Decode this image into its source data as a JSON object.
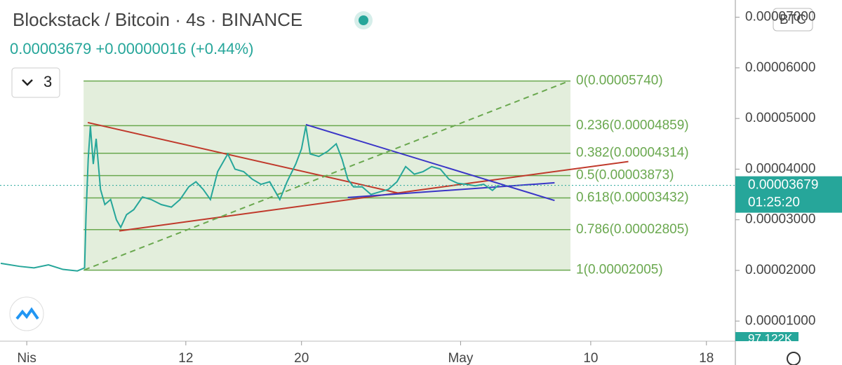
{
  "chart_data": {
    "type": "line",
    "title": "Blockstack / Bitcoin · 4s · BINANCE",
    "subtitle": "0.00003679 +0.00000016 (+0.44%)",
    "indicator_count": "3",
    "currency": "BTC",
    "last_price": {
      "value": 3.679e-05,
      "label": "0.00003679"
    },
    "countdown": "01:25:20",
    "volume_label": "97.122K",
    "xlim": [
      -0.85,
      50
    ],
    "ylim": [
      6.3e-06,
      7.34e-05
    ],
    "xticks": [
      {
        "value": 1,
        "label": "Nis"
      },
      12,
      20,
      {
        "value": 31,
        "label": "May"
      },
      {
        "value": 40,
        "label": "10"
      },
      {
        "value": 48,
        "label": "18"
      }
    ],
    "yticks": [
      {
        "value": 1e-05,
        "label": "0.00001000"
      },
      {
        "value": 2e-05,
        "label": "0.00002000"
      },
      {
        "value": 3e-05,
        "label": "0.00003000"
      },
      {
        "value": 4e-05,
        "label": "0.00004000"
      },
      {
        "value": 5e-05,
        "label": "0.00005000"
      },
      {
        "value": 6e-05,
        "label": "0.00006000"
      },
      {
        "value": 7e-05,
        "label": "0.00007000"
      }
    ],
    "series": [
      {
        "name": "Blockstack / Bitcoin",
        "color": "#26a69a",
        "x": [
          -0.8,
          0.5,
          1.5,
          2.5,
          3.5,
          4.5,
          5.0,
          5.1,
          5.25,
          5.4,
          5.6,
          5.8,
          6.1,
          6.4,
          6.8,
          7.2,
          7.5,
          7.9,
          8.4,
          9.0,
          9.6,
          10.3,
          11,
          11.6,
          12.2,
          12.7,
          13.2,
          13.7,
          14.2,
          14.9,
          15.4,
          16,
          16.6,
          17.2,
          17.8,
          18.5,
          19,
          19.6,
          20.0,
          20.3,
          20.6,
          21.2,
          21.8,
          22.4,
          22.8,
          23.2,
          23.6,
          24.2,
          24.8,
          25.4,
          26,
          26.6,
          27.2,
          27.8,
          28.4,
          29,
          29.6,
          30.2,
          30.8,
          31.4,
          32,
          32.6,
          33.2,
          33.6
        ],
        "values": [
          2.14e-05,
          2.08e-05,
          2.05e-05,
          2.11e-05,
          2.02e-05,
          1.99e-05,
          2.05e-05,
          3.1e-05,
          4.2e-05,
          4.85e-05,
          4.1e-05,
          4.6e-05,
          3.6e-05,
          3.3e-05,
          3.4e-05,
          3e-05,
          2.85e-05,
          3.1e-05,
          3.2e-05,
          3.45e-05,
          3.4e-05,
          3.3e-05,
          3.25e-05,
          3.4e-05,
          3.65e-05,
          3.75e-05,
          3.6e-05,
          3.4e-05,
          3.95e-05,
          4.3e-05,
          4e-05,
          3.95e-05,
          3.8e-05,
          3.7e-05,
          3.75e-05,
          3.4e-05,
          3.75e-05,
          4.1e-05,
          4.4e-05,
          4.85e-05,
          4.3e-05,
          4.25e-05,
          4.35e-05,
          4.5e-05,
          4.2e-05,
          3.8e-05,
          3.65e-05,
          3.65e-05,
          3.5e-05,
          3.55e-05,
          3.6e-05,
          3.75e-05,
          4.05e-05,
          3.9e-05,
          3.95e-05,
          4.05e-05,
          4e-05,
          3.8e-05,
          3.72e-05,
          3.7e-05,
          3.67e-05,
          3.7e-05,
          3.58e-05,
          3.679e-05
        ]
      }
    ],
    "fib": {
      "x": [
        4.93,
        38.6
      ],
      "color": "#6aa84f",
      "fill": "#e3eedc",
      "levels": [
        {
          "value": 5.74e-05,
          "label": "0(0.00005740)"
        },
        {
          "value": 4.859e-05,
          "label": "0.236(0.00004859)"
        },
        {
          "value": 4.314e-05,
          "label": "0.382(0.00004314)"
        },
        {
          "value": 3.873e-05,
          "label": "0.5(0.00003873)"
        },
        {
          "value": 3.432e-05,
          "label": "0.618(0.00003432)"
        },
        {
          "value": 2.805e-05,
          "label": "0.786(0.00002805)"
        },
        {
          "value": 2.005e-05,
          "label": "1(0.00002005)"
        }
      ]
    },
    "trendlines": [
      {
        "color": "#c0392b",
        "x": [
          5.22,
          26.8
        ],
        "values": [
          4.92e-05,
          3.52e-05
        ]
      },
      {
        "color": "#c0392b",
        "x": [
          7.4,
          42.6
        ],
        "values": [
          2.78e-05,
          4.15e-05
        ]
      },
      {
        "color": "#3a35c7",
        "x": [
          20.3,
          37.5
        ],
        "values": [
          4.88e-05,
          3.38e-05
        ]
      },
      {
        "color": "#3a35c7",
        "x": [
          23.2,
          37.5
        ],
        "values": [
          3.44e-05,
          3.73e-05
        ]
      },
      {
        "color": "#6aa84f",
        "dash": true,
        "x": [
          4.98,
          38.5
        ],
        "values": [
          2.01e-05,
          5.74e-05
        ]
      }
    ]
  }
}
